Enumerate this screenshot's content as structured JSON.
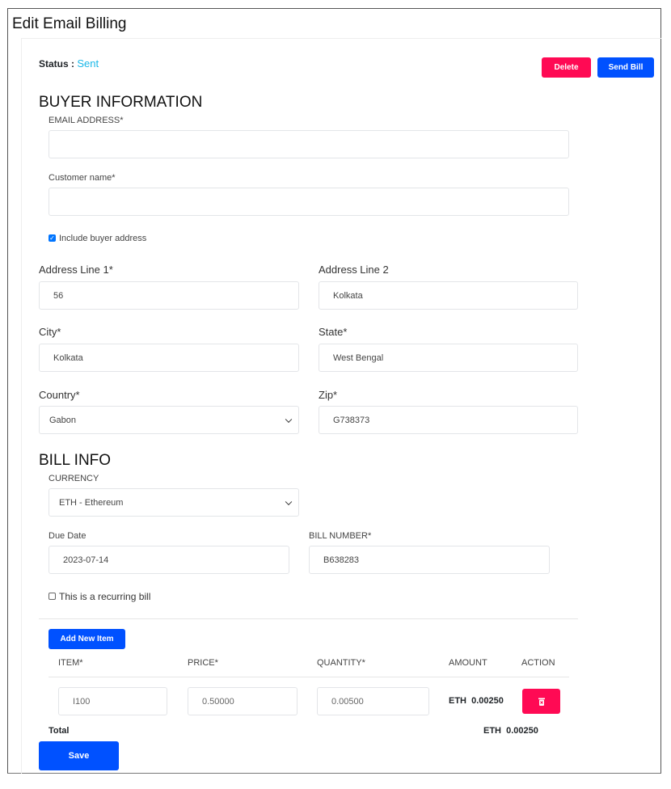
{
  "page": {
    "title": "Edit Email Billing",
    "status_label": "Status :",
    "status_value": "Sent"
  },
  "actions": {
    "delete": "Delete",
    "send": "Send Bill",
    "save": "Save"
  },
  "buyer": {
    "heading": "BUYER INFORMATION",
    "email_label": "EMAIL ADDRESS*",
    "email_value": "",
    "name_label": "Customer name*",
    "name_value": "",
    "include_address_label": "Include buyer address",
    "include_address_checked": true,
    "address1_label": "Address Line 1*",
    "address1": "56",
    "address2_label": "Address Line 2",
    "address2": "Kolkata",
    "city_label": "City*",
    "city": "Kolkata",
    "state_label": "State*",
    "state": "West Bengal",
    "country_label": "Country*",
    "country": "Gabon",
    "zip_label": "Zip*",
    "zip": "G738373"
  },
  "bill": {
    "heading": "BILL INFO",
    "currency_label": "CURRENCY",
    "currency": "ETH - Ethereum",
    "due_label": "Due Date",
    "due": "2023-07-14",
    "number_label": "BILL NUMBER*",
    "number": "B638283",
    "recurring_label": "This is a recurring bill",
    "recurring_checked": false
  },
  "items": {
    "add_label": "Add New Item",
    "headers": [
      "ITEM*",
      "PRICE*",
      "QUANTITY*",
      "AMOUNT",
      "ACTION"
    ],
    "rows": [
      {
        "item": "I100",
        "price": "0.50000",
        "quantity": "0.00500",
        "currency": "ETH",
        "amount": "0.00250"
      }
    ],
    "total_label": "Total",
    "total_currency": "ETH",
    "total": "0.00250"
  },
  "colors": {
    "danger": "#ff0a54",
    "primary": "#0051ff",
    "status": "#1ab8e8"
  }
}
